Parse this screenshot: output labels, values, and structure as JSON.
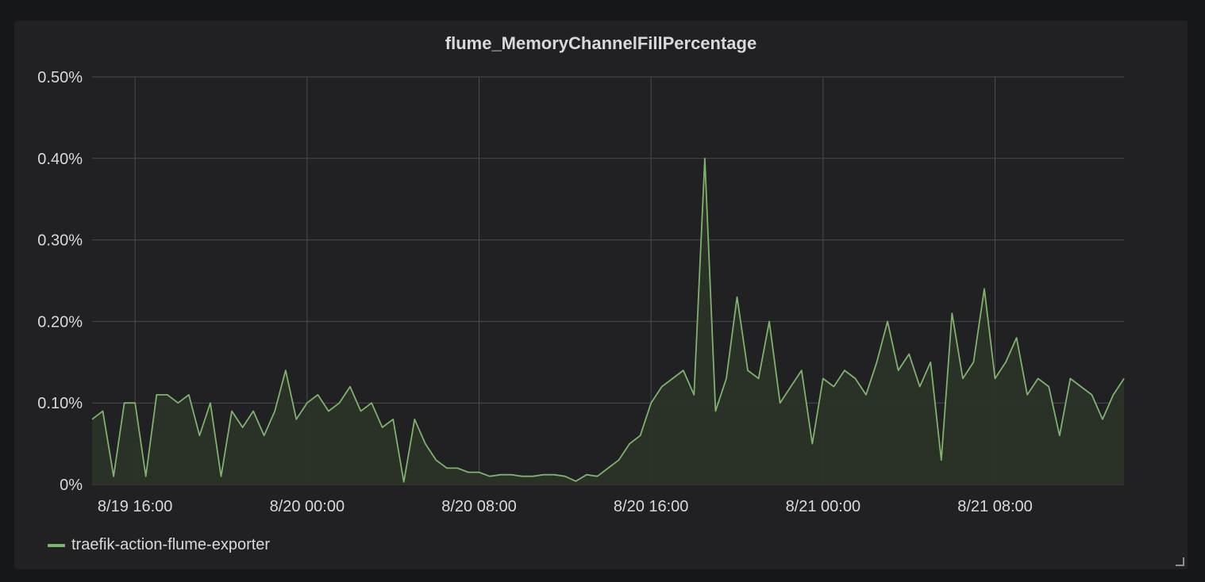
{
  "panel": {
    "title": "flume_MemoryChannelFillPercentage"
  },
  "legend": {
    "items": [
      {
        "label": "traefik-action-flume-exporter",
        "color": "#7eb26d"
      }
    ]
  },
  "colors": {
    "background": "#161719",
    "panel": "#212124",
    "grid": "#4a4a4f",
    "series_line": "#7eb26d",
    "series_fill": "#2b3328",
    "text": "#d8d9da"
  },
  "chart_data": {
    "type": "line",
    "title": "flume_MemoryChannelFillPercentage",
    "xlabel": "",
    "ylabel": "",
    "x_unit": "hours since 8/19 15:00",
    "xlim": [
      0,
      48
    ],
    "ylim": [
      0,
      0.5
    ],
    "y_tick_labels": [
      "0%",
      "0.10%",
      "0.20%",
      "0.30%",
      "0.40%",
      "0.50%"
    ],
    "y_ticks": [
      0,
      0.1,
      0.2,
      0.3,
      0.4,
      0.5
    ],
    "x_tick_labels": [
      "8/19 16:00",
      "8/20 00:00",
      "8/20 08:00",
      "8/20 16:00",
      "8/21 00:00",
      "8/21 08:00"
    ],
    "x_ticks": [
      2,
      10,
      18,
      26,
      34,
      42
    ],
    "grid": true,
    "legend_position": "bottom-left",
    "series": [
      {
        "name": "traefik-action-flume-exporter",
        "x": [
          0,
          0.5,
          1,
          1.5,
          2,
          2.5,
          3,
          3.5,
          4,
          4.5,
          5,
          5.5,
          6,
          6.5,
          7,
          7.5,
          8,
          8.5,
          9,
          9.5,
          10,
          10.5,
          11,
          11.5,
          12,
          12.5,
          13,
          13.5,
          14,
          14.5,
          15,
          15.5,
          16,
          16.5,
          17,
          17.5,
          18,
          18.5,
          19,
          19.5,
          20,
          20.5,
          21,
          21.5,
          22,
          22.5,
          23,
          23.5,
          24,
          24.5,
          25,
          25.5,
          26,
          26.5,
          27,
          27.5,
          28,
          28.5,
          29,
          29.5,
          30,
          30.5,
          31,
          31.5,
          32,
          32.5,
          33,
          33.5,
          34,
          34.5,
          35,
          35.5,
          36,
          36.5,
          37,
          37.5,
          38,
          38.5,
          39,
          39.5,
          40,
          40.5,
          41,
          41.5,
          42,
          42.5,
          43,
          43.5,
          44,
          44.5,
          45,
          45.5,
          46,
          46.5,
          47,
          47.5,
          48
        ],
        "values": [
          0.08,
          0.09,
          0.01,
          0.1,
          0.1,
          0.01,
          0.11,
          0.11,
          0.1,
          0.11,
          0.06,
          0.1,
          0.01,
          0.09,
          0.07,
          0.09,
          0.06,
          0.09,
          0.14,
          0.08,
          0.1,
          0.11,
          0.09,
          0.1,
          0.12,
          0.09,
          0.1,
          0.07,
          0.08,
          0.003,
          0.08,
          0.05,
          0.03,
          0.02,
          0.02,
          0.015,
          0.015,
          0.01,
          0.012,
          0.012,
          0.01,
          0.01,
          0.012,
          0.012,
          0.01,
          0.004,
          0.012,
          0.01,
          0.02,
          0.03,
          0.05,
          0.06,
          0.1,
          0.12,
          0.13,
          0.14,
          0.11,
          0.4,
          0.09,
          0.13,
          0.23,
          0.14,
          0.13,
          0.2,
          0.1,
          0.12,
          0.14,
          0.05,
          0.13,
          0.12,
          0.14,
          0.13,
          0.11,
          0.15,
          0.2,
          0.14,
          0.16,
          0.12,
          0.15,
          0.03,
          0.21,
          0.13,
          0.15,
          0.24,
          0.13,
          0.15,
          0.18,
          0.11,
          0.13,
          0.12,
          0.06,
          0.13,
          0.12,
          0.11,
          0.08,
          0.11,
          0.13
        ]
      }
    ]
  }
}
